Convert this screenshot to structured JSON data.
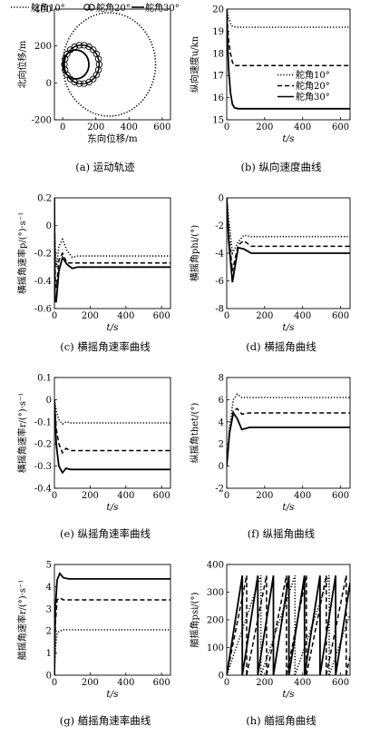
{
  "chart_data": [
    {
      "id": "a",
      "type": "line",
      "caption": "(a) 运动轨迹",
      "xlabel": "东向位移/m",
      "ylabel": "北向位移/m",
      "xlim": [
        -50,
        650
      ],
      "ylim": [
        -200,
        400
      ],
      "xticks": [
        0,
        200,
        400,
        600
      ],
      "yticks": [
        -200,
        0,
        200,
        400
      ],
      "legend_position": "top",
      "series": [
        {
          "name": "舵角10°",
          "style": "dotted",
          "circle": {
            "cx": 280,
            "cy": 100,
            "r": 280
          }
        },
        {
          "name": "舵角20°",
          "style": "circles",
          "circle": {
            "cx": 115,
            "cy": 100,
            "r": 105
          }
        },
        {
          "name": "舵角30°",
          "style": "solid",
          "circle": {
            "cx": 80,
            "cy": 100,
            "r": 78
          }
        }
      ]
    },
    {
      "id": "b",
      "type": "line",
      "caption": "(b) 纵向速度曲线",
      "xlabel": "t/s",
      "ylabel": "纵向速度u/kn",
      "xlim": [
        0,
        650
      ],
      "ylim": [
        15,
        20
      ],
      "xticks": [
        0,
        200,
        400,
        600
      ],
      "yticks": [
        15,
        16,
        17,
        18,
        19,
        20
      ],
      "legend_position": "right",
      "series": [
        {
          "name": "舵角10°",
          "style": "dotted",
          "x": [
            0,
            3,
            10,
            20,
            30,
            40,
            60,
            650
          ],
          "y": [
            20,
            19.9,
            19.6,
            19.35,
            19.22,
            19.2,
            19.18,
            19.18
          ]
        },
        {
          "name": "舵角20°",
          "style": "dashed",
          "x": [
            0,
            5,
            10,
            20,
            30,
            40,
            60,
            650
          ],
          "y": [
            20,
            19.2,
            18.6,
            18.0,
            17.6,
            17.45,
            17.45,
            17.45
          ]
        },
        {
          "name": "舵角30°",
          "style": "solid",
          "x": [
            0,
            5,
            10,
            20,
            30,
            40,
            60,
            650
          ],
          "y": [
            20,
            18.5,
            17.3,
            16.2,
            15.7,
            15.55,
            15.5,
            15.5
          ]
        }
      ]
    },
    {
      "id": "c",
      "type": "line",
      "caption": "(c) 横摇角速率曲线",
      "xlabel": "t/s",
      "ylabel": "横摇角速率p/(°)·s⁻¹",
      "xlim": [
        0,
        650
      ],
      "ylim": [
        -0.6,
        0.2
      ],
      "xticks": [
        0,
        200,
        400,
        600
      ],
      "yticks": [
        -0.6,
        -0.4,
        -0.2,
        0,
        0.2
      ],
      "series": [
        {
          "name": "舵角10°",
          "style": "dotted",
          "x": [
            0,
            5,
            12,
            25,
            45,
            70,
            100,
            130,
            650
          ],
          "y": [
            0,
            -0.2,
            -0.3,
            -0.15,
            -0.1,
            -0.18,
            -0.23,
            -0.22,
            -0.22
          ]
        },
        {
          "name": "舵角20°",
          "style": "dashed",
          "x": [
            0,
            5,
            12,
            25,
            45,
            70,
            100,
            130,
            650
          ],
          "y": [
            0.1,
            -0.4,
            -0.45,
            -0.25,
            -0.2,
            -0.27,
            -0.27,
            -0.27,
            -0.27
          ]
        },
        {
          "name": "舵角30°",
          "style": "solid",
          "x": [
            0,
            3,
            10,
            25,
            45,
            70,
            100,
            130,
            650
          ],
          "y": [
            0.2,
            -0.55,
            -0.55,
            -0.33,
            -0.23,
            -0.28,
            -0.31,
            -0.3,
            -0.3
          ]
        }
      ]
    },
    {
      "id": "d",
      "type": "line",
      "caption": "(d) 横摇角曲线",
      "xlabel": "t/s",
      "ylabel": "横摇角phi/(°)",
      "xlim": [
        0,
        650
      ],
      "ylim": [
        -8,
        0
      ],
      "xticks": [
        0,
        200,
        400,
        600
      ],
      "yticks": [
        -8,
        -6,
        -4,
        -2,
        0
      ],
      "series": [
        {
          "name": "舵角10°",
          "style": "dotted",
          "x": [
            0,
            10,
            30,
            60,
            90,
            130,
            180,
            650
          ],
          "y": [
            0,
            -1.5,
            -4.0,
            -3.2,
            -2.7,
            -2.8,
            -2.8,
            -2.8
          ]
        },
        {
          "name": "舵角20°",
          "style": "dashed",
          "x": [
            0,
            10,
            30,
            60,
            90,
            130,
            180,
            650
          ],
          "y": [
            0,
            -2.5,
            -5.3,
            -3.4,
            -3.1,
            -3.5,
            -3.5,
            -3.5
          ]
        },
        {
          "name": "舵角30°",
          "style": "solid",
          "x": [
            0,
            10,
            30,
            60,
            90,
            130,
            180,
            650
          ],
          "y": [
            0,
            -3.0,
            -6.1,
            -3.6,
            -3.7,
            -4.0,
            -4.0,
            -4.0
          ]
        }
      ]
    },
    {
      "id": "e",
      "type": "line",
      "caption": "(e) 纵摇角速率曲线",
      "xlabel": "t/s",
      "ylabel": "横摇角速率r/(°)·s⁻¹",
      "xlim": [
        0,
        650
      ],
      "ylim": [
        -0.4,
        0.1
      ],
      "xticks": [
        0,
        200,
        400,
        600
      ],
      "yticks": [
        -0.4,
        -0.3,
        -0.2,
        -0.1,
        0,
        0.1
      ],
      "series": [
        {
          "name": "舵角10°",
          "style": "dotted",
          "x": [
            0,
            10,
            25,
            45,
            65,
            90,
            130,
            650
          ],
          "y": [
            0,
            -0.05,
            -0.09,
            -0.11,
            -0.1,
            -0.105,
            -0.105,
            -0.105
          ]
        },
        {
          "name": "舵角20°",
          "style": "dashed",
          "x": [
            0,
            10,
            25,
            45,
            65,
            90,
            130,
            650
          ],
          "y": [
            0,
            -0.13,
            -0.2,
            -0.24,
            -0.22,
            -0.23,
            -0.23,
            -0.23
          ]
        },
        {
          "name": "舵角30°",
          "style": "solid",
          "x": [
            0,
            10,
            25,
            45,
            65,
            90,
            130,
            650
          ],
          "y": [
            0,
            -0.2,
            -0.3,
            -0.33,
            -0.31,
            -0.315,
            -0.315,
            -0.315
          ]
        }
      ]
    },
    {
      "id": "f",
      "type": "line",
      "caption": "(f) 纵摇角曲线",
      "xlabel": "t/s",
      "ylabel": "纵摇角thet/(°)",
      "xlim": [
        0,
        650
      ],
      "ylim": [
        -2,
        8
      ],
      "xticks": [
        0,
        200,
        400,
        600
      ],
      "yticks": [
        -2,
        0,
        2,
        4,
        6,
        8
      ],
      "series": [
        {
          "name": "舵角10°",
          "style": "dotted",
          "x": [
            0,
            15,
            35,
            55,
            80,
            120,
            650
          ],
          "y": [
            0,
            3.5,
            6.0,
            6.5,
            6.2,
            6.2,
            6.2
          ]
        },
        {
          "name": "舵角20°",
          "style": "dashed",
          "x": [
            0,
            15,
            35,
            55,
            80,
            120,
            650
          ],
          "y": [
            0,
            3.0,
            5.0,
            5.2,
            4.7,
            4.8,
            4.8
          ]
        },
        {
          "name": "舵角30°",
          "style": "solid",
          "x": [
            0,
            15,
            35,
            55,
            80,
            120,
            650
          ],
          "y": [
            0,
            3.0,
            4.8,
            4.3,
            3.3,
            3.5,
            3.5
          ]
        }
      ]
    },
    {
      "id": "g",
      "type": "line",
      "caption": "(g) 艏摇角速率曲线",
      "xlabel": "t/s",
      "ylabel": "艏摇角速率r/(°)·s⁻¹",
      "xlim": [
        0,
        650
      ],
      "ylim": [
        0,
        5
      ],
      "xticks": [
        0,
        200,
        400,
        600
      ],
      "yticks": [
        0,
        1,
        2,
        3,
        4,
        5
      ],
      "series": [
        {
          "name": "舵角10°",
          "style": "dotted",
          "x": [
            0,
            5,
            15,
            30,
            50,
            650
          ],
          "y": [
            0,
            1.2,
            1.9,
            2.0,
            2.05,
            2.05
          ]
        },
        {
          "name": "舵角20°",
          "style": "dashed",
          "x": [
            0,
            5,
            15,
            30,
            50,
            650
          ],
          "y": [
            0,
            2.3,
            3.4,
            3.5,
            3.4,
            3.4
          ]
        },
        {
          "name": "舵角30°",
          "style": "solid",
          "x": [
            0,
            5,
            15,
            30,
            50,
            80,
            650
          ],
          "y": [
            0,
            3.0,
            4.3,
            4.6,
            4.4,
            4.35,
            4.35
          ]
        }
      ]
    },
    {
      "id": "h",
      "type": "line",
      "caption": "(h) 艏摇角曲线",
      "xlabel": "t/s",
      "ylabel": "艏摇角psi/(°)",
      "xlim": [
        0,
        650
      ],
      "ylim": [
        0,
        400
      ],
      "xticks": [
        0,
        200,
        400,
        600
      ],
      "yticks": [
        0,
        100,
        200,
        300,
        400
      ],
      "series": [
        {
          "name": "舵角10°",
          "style": "dotted",
          "sawtooth_period_s": 180,
          "x": [
            0,
            180,
            360,
            540,
            650
          ],
          "y": [
            0,
            360,
            360,
            360,
            220
          ]
        },
        {
          "name": "舵角20°",
          "style": "dashed",
          "sawtooth_period_s": 105,
          "x": [
            0,
            105,
            210,
            315,
            420,
            525,
            630,
            650
          ],
          "y": [
            0,
            360,
            360,
            360,
            360,
            360,
            360,
            70
          ]
        },
        {
          "name": "舵角30°",
          "style": "solid",
          "sawtooth_period_s": 82,
          "x": [
            0,
            82,
            164,
            246,
            328,
            410,
            492,
            574,
            650
          ],
          "y": [
            0,
            360,
            360,
            360,
            360,
            360,
            360,
            360,
            330
          ]
        }
      ]
    }
  ]
}
